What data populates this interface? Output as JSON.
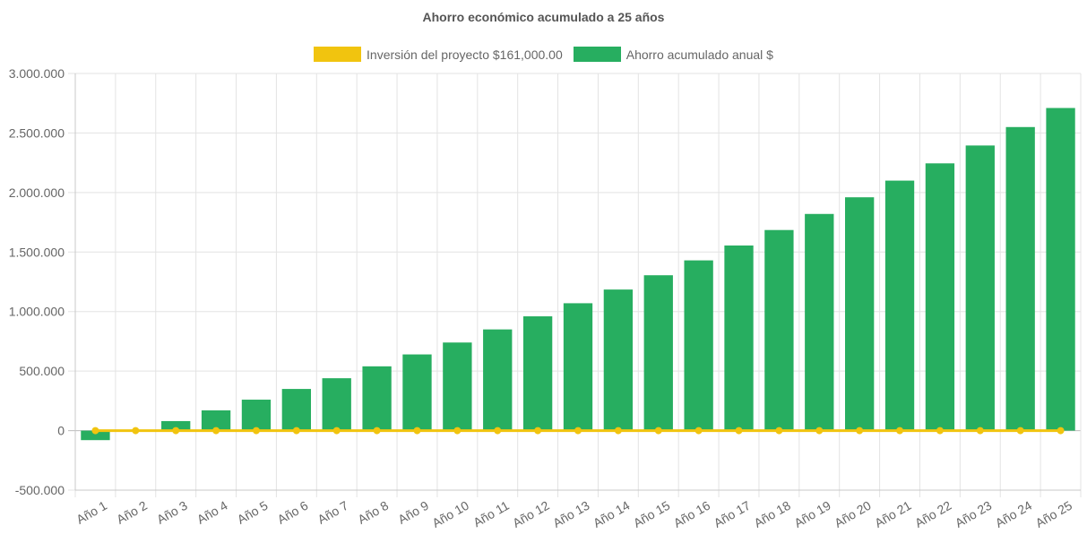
{
  "chart_data": {
    "type": "bar",
    "title": "Ahorro económico acumulado a 25 años",
    "categories": [
      "Año 1",
      "Año 2",
      "Año 3",
      "Año 4",
      "Año 5",
      "Año 6",
      "Año 7",
      "Año 8",
      "Año 9",
      "Año 10",
      "Año 11",
      "Año 12",
      "Año 13",
      "Año 14",
      "Año 15",
      "Año 16",
      "Año 17",
      "Año 18",
      "Año 19",
      "Año 20",
      "Año 21",
      "Año 22",
      "Año 23",
      "Año 24",
      "Año 25"
    ],
    "series": [
      {
        "name": "Inversión del proyecto $161,000.00",
        "type": "line",
        "color": "#f1c40f",
        "values": [
          0,
          0,
          0,
          0,
          0,
          0,
          0,
          0,
          0,
          0,
          0,
          0,
          0,
          0,
          0,
          0,
          0,
          0,
          0,
          0,
          0,
          0,
          0,
          0,
          0
        ]
      },
      {
        "name": "Ahorro acumulado anual $",
        "type": "bar",
        "color": "#27ae60",
        "values": [
          -80000,
          0,
          80000,
          170000,
          260000,
          350000,
          440000,
          540000,
          640000,
          740000,
          850000,
          960000,
          1070000,
          1185000,
          1305000,
          1430000,
          1555000,
          1685000,
          1820000,
          1960000,
          2100000,
          2245000,
          2395000,
          2550000,
          2710000
        ]
      }
    ],
    "ylim": [
      -500000,
      3000000
    ],
    "y_ticks": [
      3000000,
      2500000,
      2000000,
      1500000,
      1000000,
      500000,
      0,
      -500000
    ],
    "y_tick_labels": [
      "3.000.000",
      "2.500.000",
      "2.000.000",
      "1.500.000",
      "1.000.000",
      "500.000",
      "0",
      "-500.000"
    ],
    "grid": true,
    "legend_position": "top"
  }
}
